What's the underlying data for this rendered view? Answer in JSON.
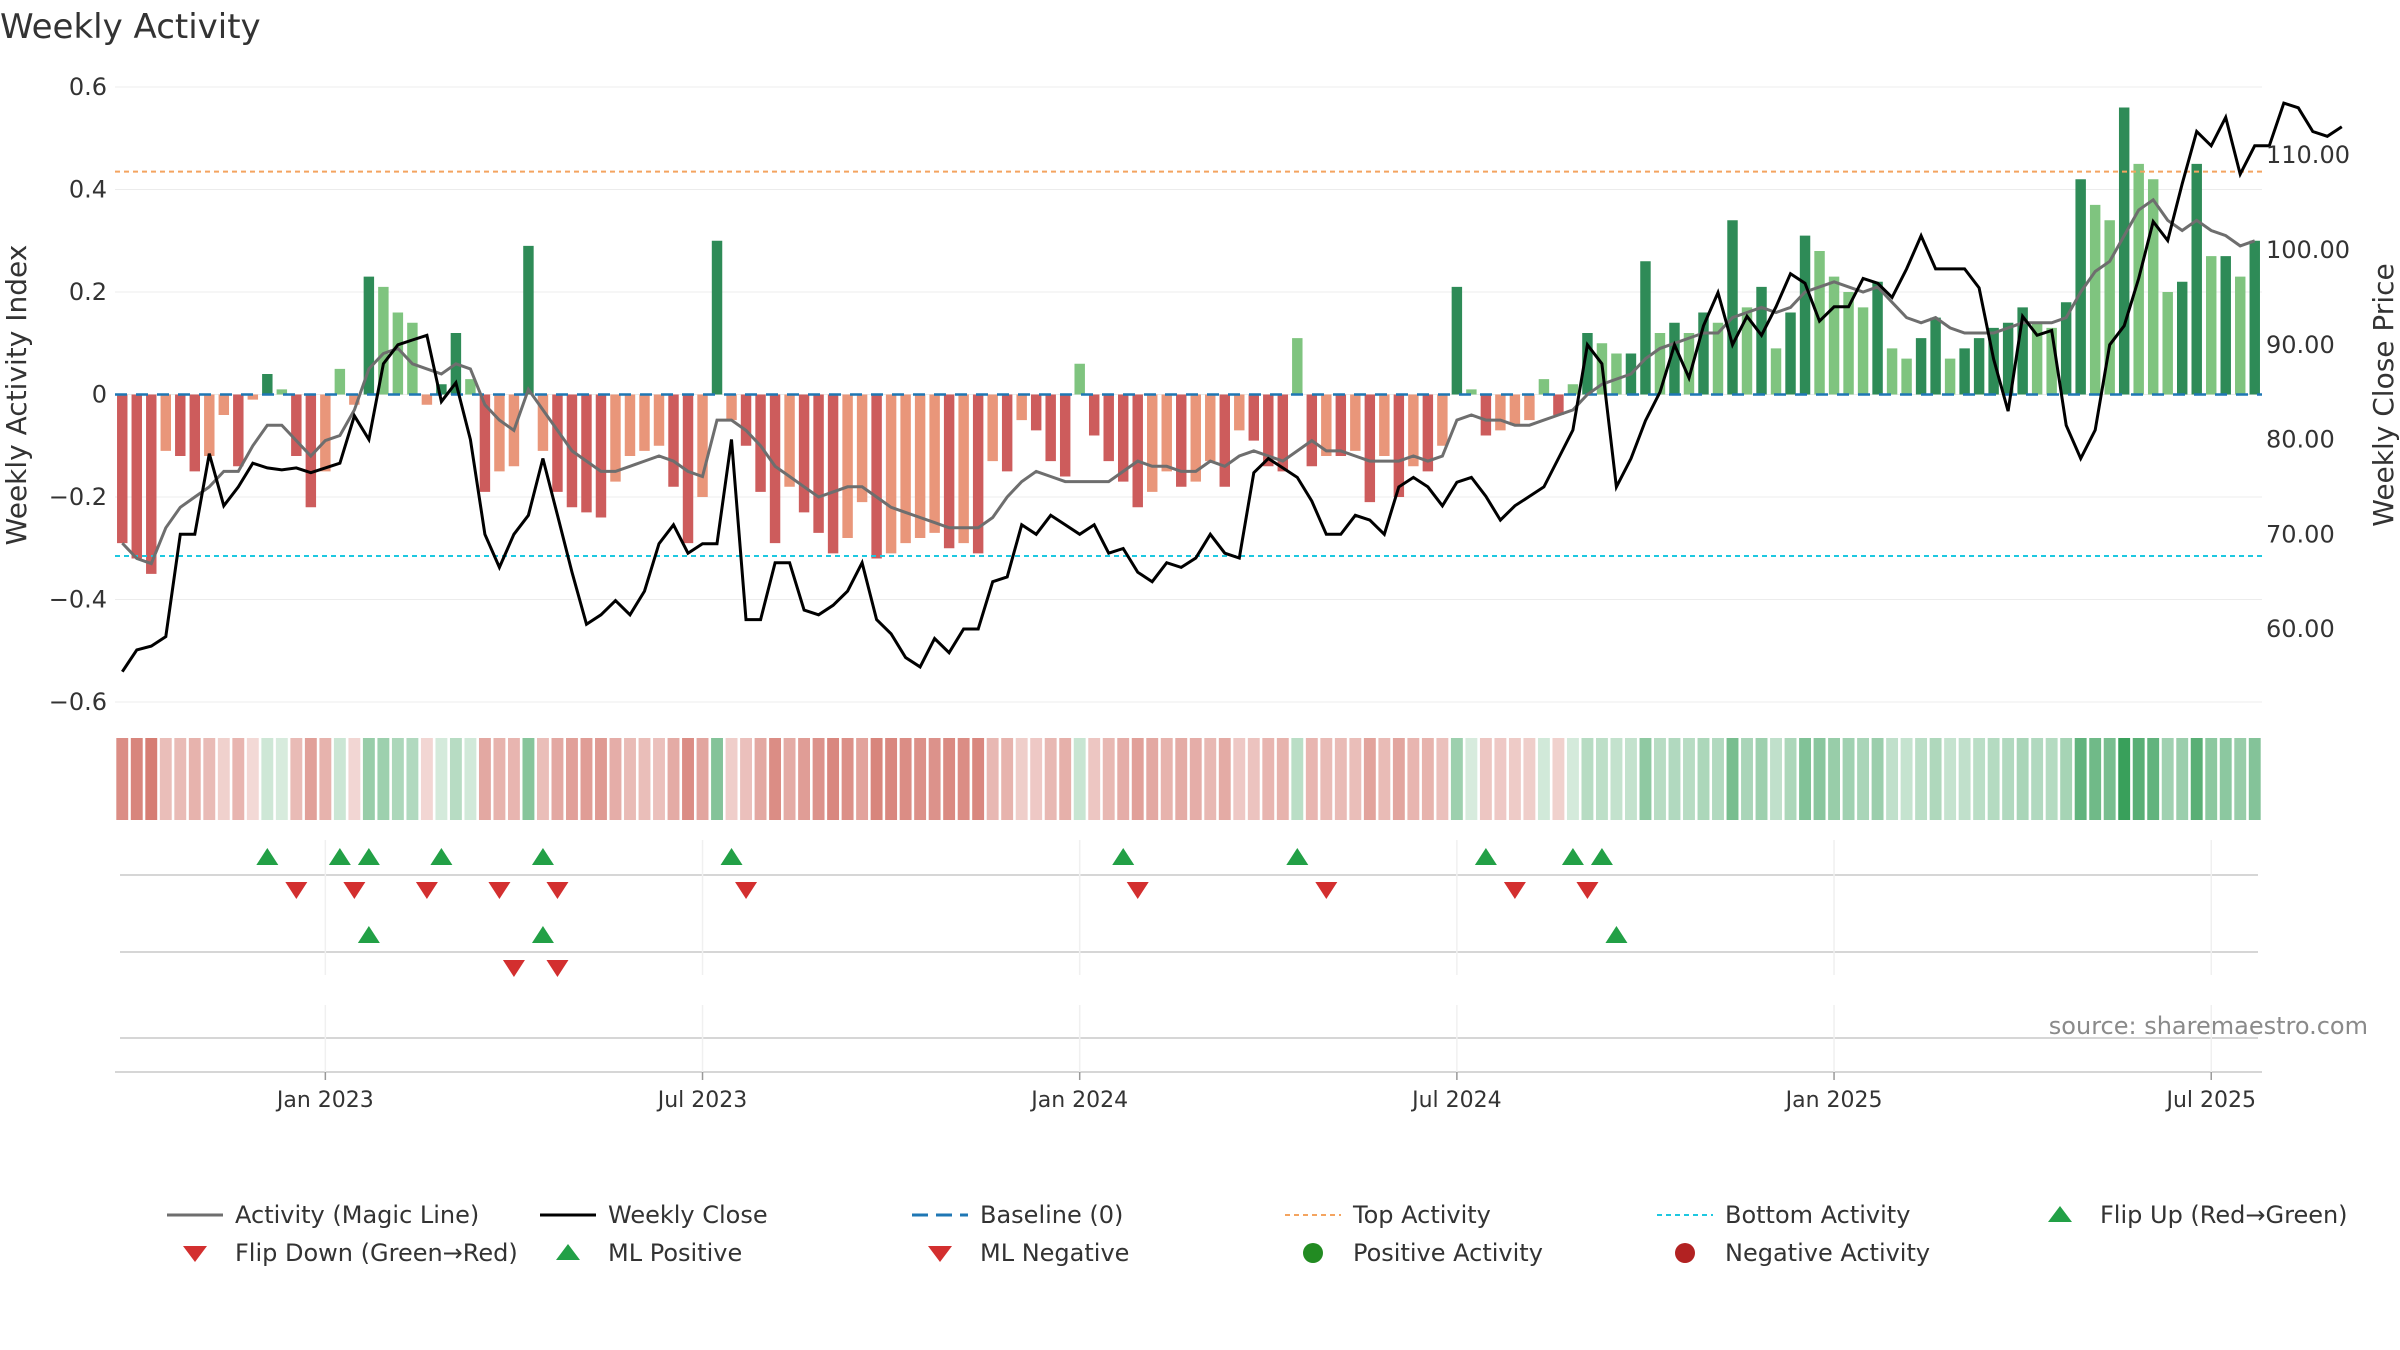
{
  "chart_data": {
    "type": "bar",
    "title": "Weekly Activity",
    "source": "source: sharemaestro.com",
    "y_left_label": "Weekly Activity Index",
    "y_right_label": "Weekly Close Price",
    "y_left_ticks": [
      "0.6",
      "0.4",
      "0.2",
      "0",
      "−0.2",
      "−0.4",
      "−0.6"
    ],
    "y_left_tick_values": [
      0.6,
      0.4,
      0.2,
      0,
      -0.2,
      -0.4,
      -0.6
    ],
    "y_right_ticks": [
      "110.00",
      "100.00",
      "90.00",
      "80.00",
      "70.00",
      "60.00"
    ],
    "y_right_tick_values": [
      110,
      100,
      90,
      80,
      70,
      60
    ],
    "y_left_range": [
      -0.6,
      0.6
    ],
    "y_right_range": [
      52.3,
      117.2
    ],
    "x_ticks": [
      "Jan 2023",
      "Jul 2023",
      "Jan 2024",
      "Jul 2024",
      "Jan 2025",
      "Jul 2025"
    ],
    "x_tick_weeks": [
      14.5,
      40.5,
      66.5,
      92.5,
      118.5,
      144.5
    ],
    "top_activity": 0.435,
    "bottom_activity": -0.315,
    "activity_index": [
      -0.29,
      -0.32,
      -0.35,
      -0.11,
      -0.12,
      -0.15,
      -0.12,
      -0.04,
      -0.14,
      -0.01,
      0.04,
      0.01,
      -0.12,
      -0.22,
      -0.15,
      0.05,
      -0.02,
      0.23,
      0.21,
      0.16,
      0.14,
      -0.02,
      0.02,
      0.12,
      0.03,
      -0.19,
      -0.15,
      -0.14,
      0.29,
      -0.11,
      -0.19,
      -0.22,
      -0.23,
      -0.24,
      -0.17,
      -0.12,
      -0.11,
      -0.1,
      -0.18,
      -0.29,
      -0.2,
      0.3,
      -0.05,
      -0.1,
      -0.19,
      -0.29,
      -0.18,
      -0.23,
      -0.27,
      -0.31,
      -0.28,
      -0.21,
      -0.32,
      -0.31,
      -0.29,
      -0.28,
      -0.27,
      -0.3,
      -0.29,
      -0.31,
      -0.13,
      -0.15,
      -0.05,
      -0.07,
      -0.13,
      -0.16,
      0.06,
      -0.08,
      -0.13,
      -0.17,
      -0.22,
      -0.19,
      -0.15,
      -0.18,
      -0.17,
      -0.13,
      -0.18,
      -0.07,
      -0.09,
      -0.14,
      -0.15,
      0.11,
      -0.14,
      -0.12,
      -0.12,
      -0.11,
      -0.21,
      -0.12,
      -0.2,
      -0.14,
      -0.15,
      -0.1,
      0.21,
      0.01,
      -0.08,
      -0.07,
      -0.06,
      -0.05,
      0.03,
      -0.04,
      0.02,
      0.12,
      0.1,
      0.08,
      0.08,
      0.26,
      0.12,
      0.14,
      0.12,
      0.16,
      0.14,
      0.34,
      0.17,
      0.21,
      0.09,
      0.16,
      0.31,
      0.28,
      0.23,
      0.2,
      0.17,
      0.22,
      0.09,
      0.07,
      0.11,
      0.15,
      0.07,
      0.09,
      0.11,
      0.13,
      0.14,
      0.17,
      0.14,
      0.13,
      0.18,
      0.42,
      0.37,
      0.34,
      0.56,
      0.45,
      0.42,
      0.2,
      0.22,
      0.45,
      0.27,
      0.27,
      0.23,
      0.3
    ],
    "magic_line": [
      -0.29,
      -0.32,
      -0.33,
      -0.26,
      -0.22,
      -0.2,
      -0.18,
      -0.15,
      -0.15,
      -0.1,
      -0.06,
      -0.06,
      -0.09,
      -0.12,
      -0.09,
      -0.08,
      -0.03,
      0.05,
      0.08,
      0.09,
      0.06,
      0.05,
      0.04,
      0.06,
      0.05,
      -0.02,
      -0.05,
      -0.07,
      0.01,
      -0.03,
      -0.07,
      -0.11,
      -0.13,
      -0.15,
      -0.15,
      -0.14,
      -0.13,
      -0.12,
      -0.13,
      -0.15,
      -0.16,
      -0.05,
      -0.05,
      -0.07,
      -0.1,
      -0.14,
      -0.16,
      -0.18,
      -0.2,
      -0.19,
      -0.18,
      -0.18,
      -0.2,
      -0.22,
      -0.23,
      -0.24,
      -0.25,
      -0.26,
      -0.26,
      -0.26,
      -0.24,
      -0.2,
      -0.17,
      -0.15,
      -0.16,
      -0.17,
      -0.17,
      -0.17,
      -0.17,
      -0.15,
      -0.13,
      -0.14,
      -0.14,
      -0.15,
      -0.15,
      -0.13,
      -0.14,
      -0.12,
      -0.11,
      -0.12,
      -0.13,
      -0.11,
      -0.09,
      -0.11,
      -0.11,
      -0.12,
      -0.13,
      -0.13,
      -0.13,
      -0.12,
      -0.13,
      -0.12,
      -0.05,
      -0.04,
      -0.05,
      -0.05,
      -0.06,
      -0.06,
      -0.05,
      -0.04,
      -0.03,
      0.0,
      0.02,
      0.03,
      0.04,
      0.07,
      0.09,
      0.1,
      0.11,
      0.12,
      0.12,
      0.15,
      0.16,
      0.17,
      0.16,
      0.17,
      0.2,
      0.21,
      0.22,
      0.21,
      0.2,
      0.21,
      0.18,
      0.15,
      0.14,
      0.15,
      0.13,
      0.12,
      0.12,
      0.12,
      0.13,
      0.14,
      0.14,
      0.14,
      0.15,
      0.2,
      0.24,
      0.26,
      0.31,
      0.36,
      0.38,
      0.34,
      0.32,
      0.34,
      0.32,
      0.31,
      0.29,
      0.3
    ],
    "weekly_close": [
      55.5,
      57.8,
      58.2,
      59.2,
      70.0,
      70.0,
      78.5,
      73.0,
      75.0,
      77.5,
      77.0,
      76.8,
      77.0,
      76.5,
      77.0,
      77.5,
      82.5,
      80.0,
      88.0,
      90.0,
      90.5,
      91.0,
      84.0,
      86.0,
      80.0,
      70.0,
      66.5,
      70.0,
      72.0,
      78.0,
      72.0,
      66.0,
      60.5,
      61.5,
      63.0,
      61.5,
      64.0,
      69.0,
      71.0,
      68.0,
      69.0,
      69.0,
      80.0,
      61.0,
      61.0,
      67.0,
      67.0,
      62.0,
      61.5,
      62.5,
      64.0,
      67.0,
      61.0,
      59.5,
      57.0,
      56.0,
      59.0,
      57.5,
      60.0,
      60.0,
      65.0,
      65.5,
      71.0,
      70.0,
      72.0,
      71.0,
      70.0,
      71.0,
      68.0,
      68.5,
      66.0,
      65.0,
      67.0,
      66.5,
      67.5,
      70.0,
      68.0,
      67.5,
      76.5,
      78.0,
      77.0,
      76.0,
      73.5,
      70.0,
      70.0,
      72.0,
      71.5,
      70.0,
      75.0,
      76.0,
      75.0,
      73.0,
      75.5,
      76.0,
      74.0,
      71.5,
      73.0,
      74.0,
      75.0,
      78.0,
      81.0,
      90.0,
      88.0,
      75.0,
      78.0,
      82.0,
      85.0,
      90.0,
      86.5,
      92.0,
      95.5,
      90.0,
      93.0,
      91.0,
      94.0,
      97.5,
      96.5,
      92.5,
      94.0,
      94.0,
      97.0,
      96.5,
      95.0,
      98.0,
      101.5,
      98.0,
      98.0,
      98.0,
      96.0,
      88.5,
      83.0,
      93.0,
      91.0,
      91.5,
      81.5,
      78.0,
      81.0,
      90.0,
      92.0,
      97.0,
      103.0,
      101.0,
      107.0,
      112.5,
      111.0,
      114.0,
      108.0,
      111.0,
      111.0,
      115.5,
      115.0,
      112.5,
      112.0,
      113.0
    ],
    "flip_up_weeks": [
      10,
      15,
      17,
      22,
      29,
      42,
      69,
      81,
      94,
      100,
      102
    ],
    "flip_down_weeks": [
      12,
      16,
      21,
      26,
      30,
      43,
      70,
      83,
      96,
      101
    ],
    "ml_positive_weeks": [
      17,
      29,
      103
    ],
    "ml_negative_weeks": [
      27,
      30
    ],
    "colors": {
      "green_dark": "#2e8b57",
      "green_light": "#7fc47f",
      "red_dark": "#cd5c5c",
      "red_light": "#e9967a",
      "magic_line": "#6e6e6e",
      "close_line": "#000000",
      "baseline": "#1f77b4",
      "top": "#f4a460",
      "bottom": "#1ec8e0",
      "tri_green": "#22a046",
      "tri_red": "#d32f2f",
      "dot_green": "#228b22",
      "dot_red": "#b22222"
    }
  },
  "legend": {
    "magic_line": "Activity (Magic Line)",
    "weekly_close": "Weekly Close",
    "baseline": "Baseline (0)",
    "top_activity": "Top Activity",
    "bottom_activity": "Bottom Activity",
    "flip_up": "Flip Up (Red→Green)",
    "flip_down": "Flip Down (Green→Red)",
    "ml_positive": "ML Positive",
    "ml_negative": "ML Negative",
    "positive_activity": "Positive Activity",
    "negative_activity": "Negative Activity"
  }
}
